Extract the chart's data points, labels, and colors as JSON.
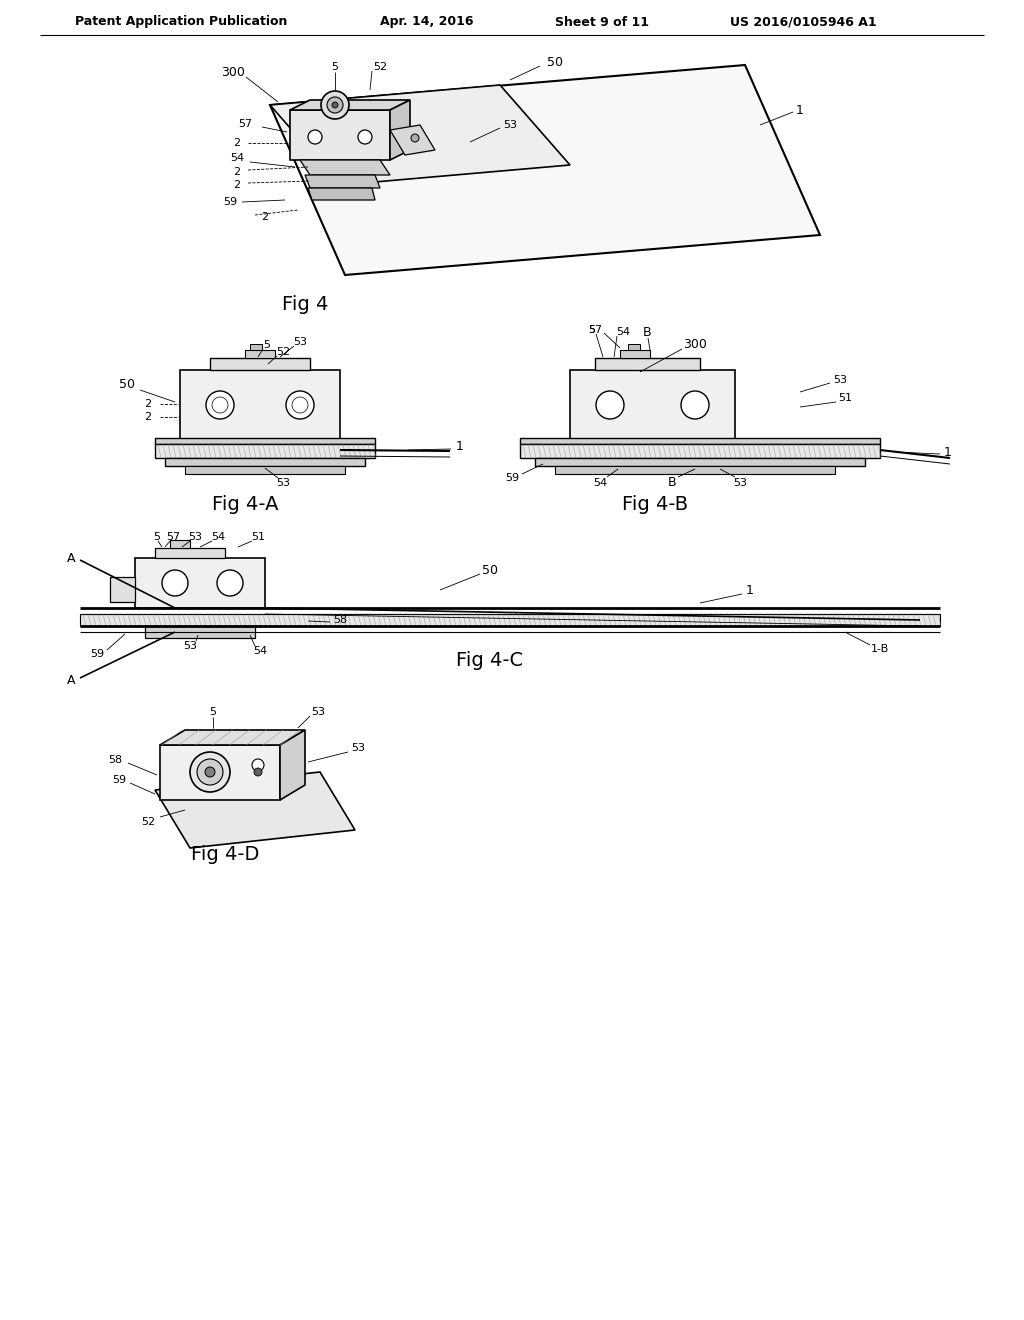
{
  "background_color": "#ffffff",
  "header_text": "Patent Application Publication",
  "header_date": "Apr. 14, 2016",
  "header_sheet": "Sheet 9 of 11",
  "header_patent": "US 2016/0105946 A1",
  "fig4_caption": "Fig 4",
  "fig4a_caption": "Fig 4-A",
  "fig4b_caption": "Fig 4-B",
  "fig4c_caption": "Fig 4-C",
  "fig4d_caption": "Fig 4-D",
  "line_color": "#000000",
  "label_color": "#000000"
}
